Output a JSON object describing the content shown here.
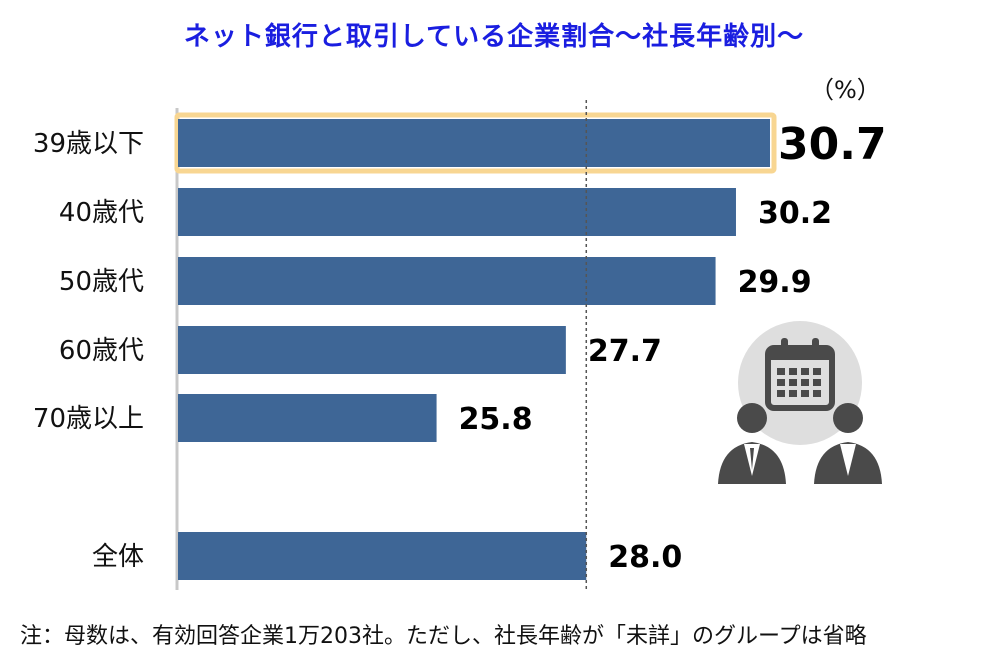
{
  "title": "ネット銀行と取引している企業割合～社長年齢別～",
  "unit_label": "（%）",
  "note": "注：母数は、有効回答企業1万203社。ただし、社長年齢が「未詳」のグループは省略",
  "colors": {
    "bar": "#3e6696",
    "highlight": "#f8d692",
    "axis": "#c8c8c8",
    "reference_line": "#555555",
    "icon_bg": "#dedede",
    "icon_dark": "#4a4a4a"
  },
  "icon": "calendar-people-icon",
  "chart_data": {
    "type": "bar",
    "orientation": "horizontal",
    "title": "ネット銀行と取引している企業割合～社長年齢別～",
    "unit": "%",
    "categories": [
      "39歳以下",
      "40歳代",
      "50歳代",
      "60歳代",
      "70歳以上",
      "全体"
    ],
    "values": [
      30.7,
      30.2,
      29.9,
      27.7,
      25.8,
      28.0
    ],
    "value_labels": [
      "30.7",
      "30.2",
      "29.9",
      "27.7",
      "25.8",
      "28.0"
    ],
    "highlighted_category": "39歳以下",
    "reference_line": {
      "value": 28.0,
      "style": "dashed"
    },
    "xlim": [
      22,
      30.7
    ]
  }
}
